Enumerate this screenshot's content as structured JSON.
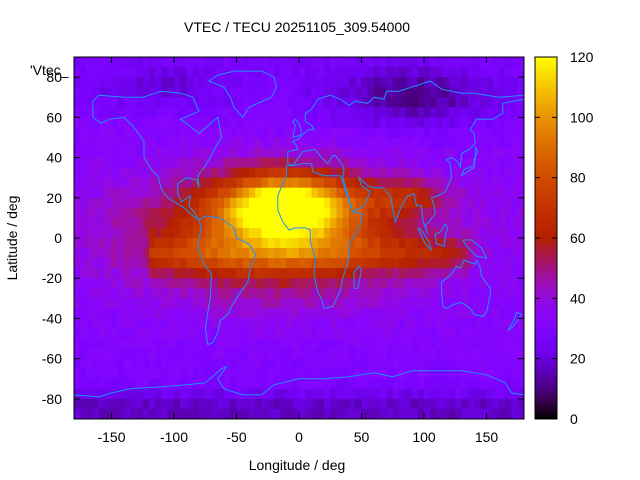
{
  "chart_data": {
    "type": "heatmap",
    "title": "VTEC / TECU 20251105_309.54000",
    "xlabel": "Longitude / deg",
    "ylabel": "Latitude / deg",
    "key_label": "'Vtec_",
    "xlim": [
      -180,
      180
    ],
    "ylim": [
      -90,
      90
    ],
    "zlim": [
      0,
      120
    ],
    "xticks": [
      -150,
      -100,
      -50,
      0,
      50,
      100,
      150
    ],
    "yticks": [
      -80,
      -60,
      -40,
      -20,
      0,
      20,
      40,
      60,
      80
    ],
    "cbticks": [
      0,
      20,
      40,
      60,
      80,
      100,
      120
    ],
    "palette": "gnuplot black-purple-red-orange-yellow",
    "grid_step_deg": 5,
    "coastline_color": "#1e90ff",
    "features": {
      "background_level": 28,
      "equatorial_peak": {
        "lon": -10,
        "lat": 15,
        "value": 110
      },
      "anomaly_crest": {
        "lat": -8,
        "lon_range": [
          -100,
          130
        ],
        "value": 72
      },
      "polar_minimum": {
        "lat": 70,
        "lon": 90,
        "value": 8
      }
    }
  }
}
